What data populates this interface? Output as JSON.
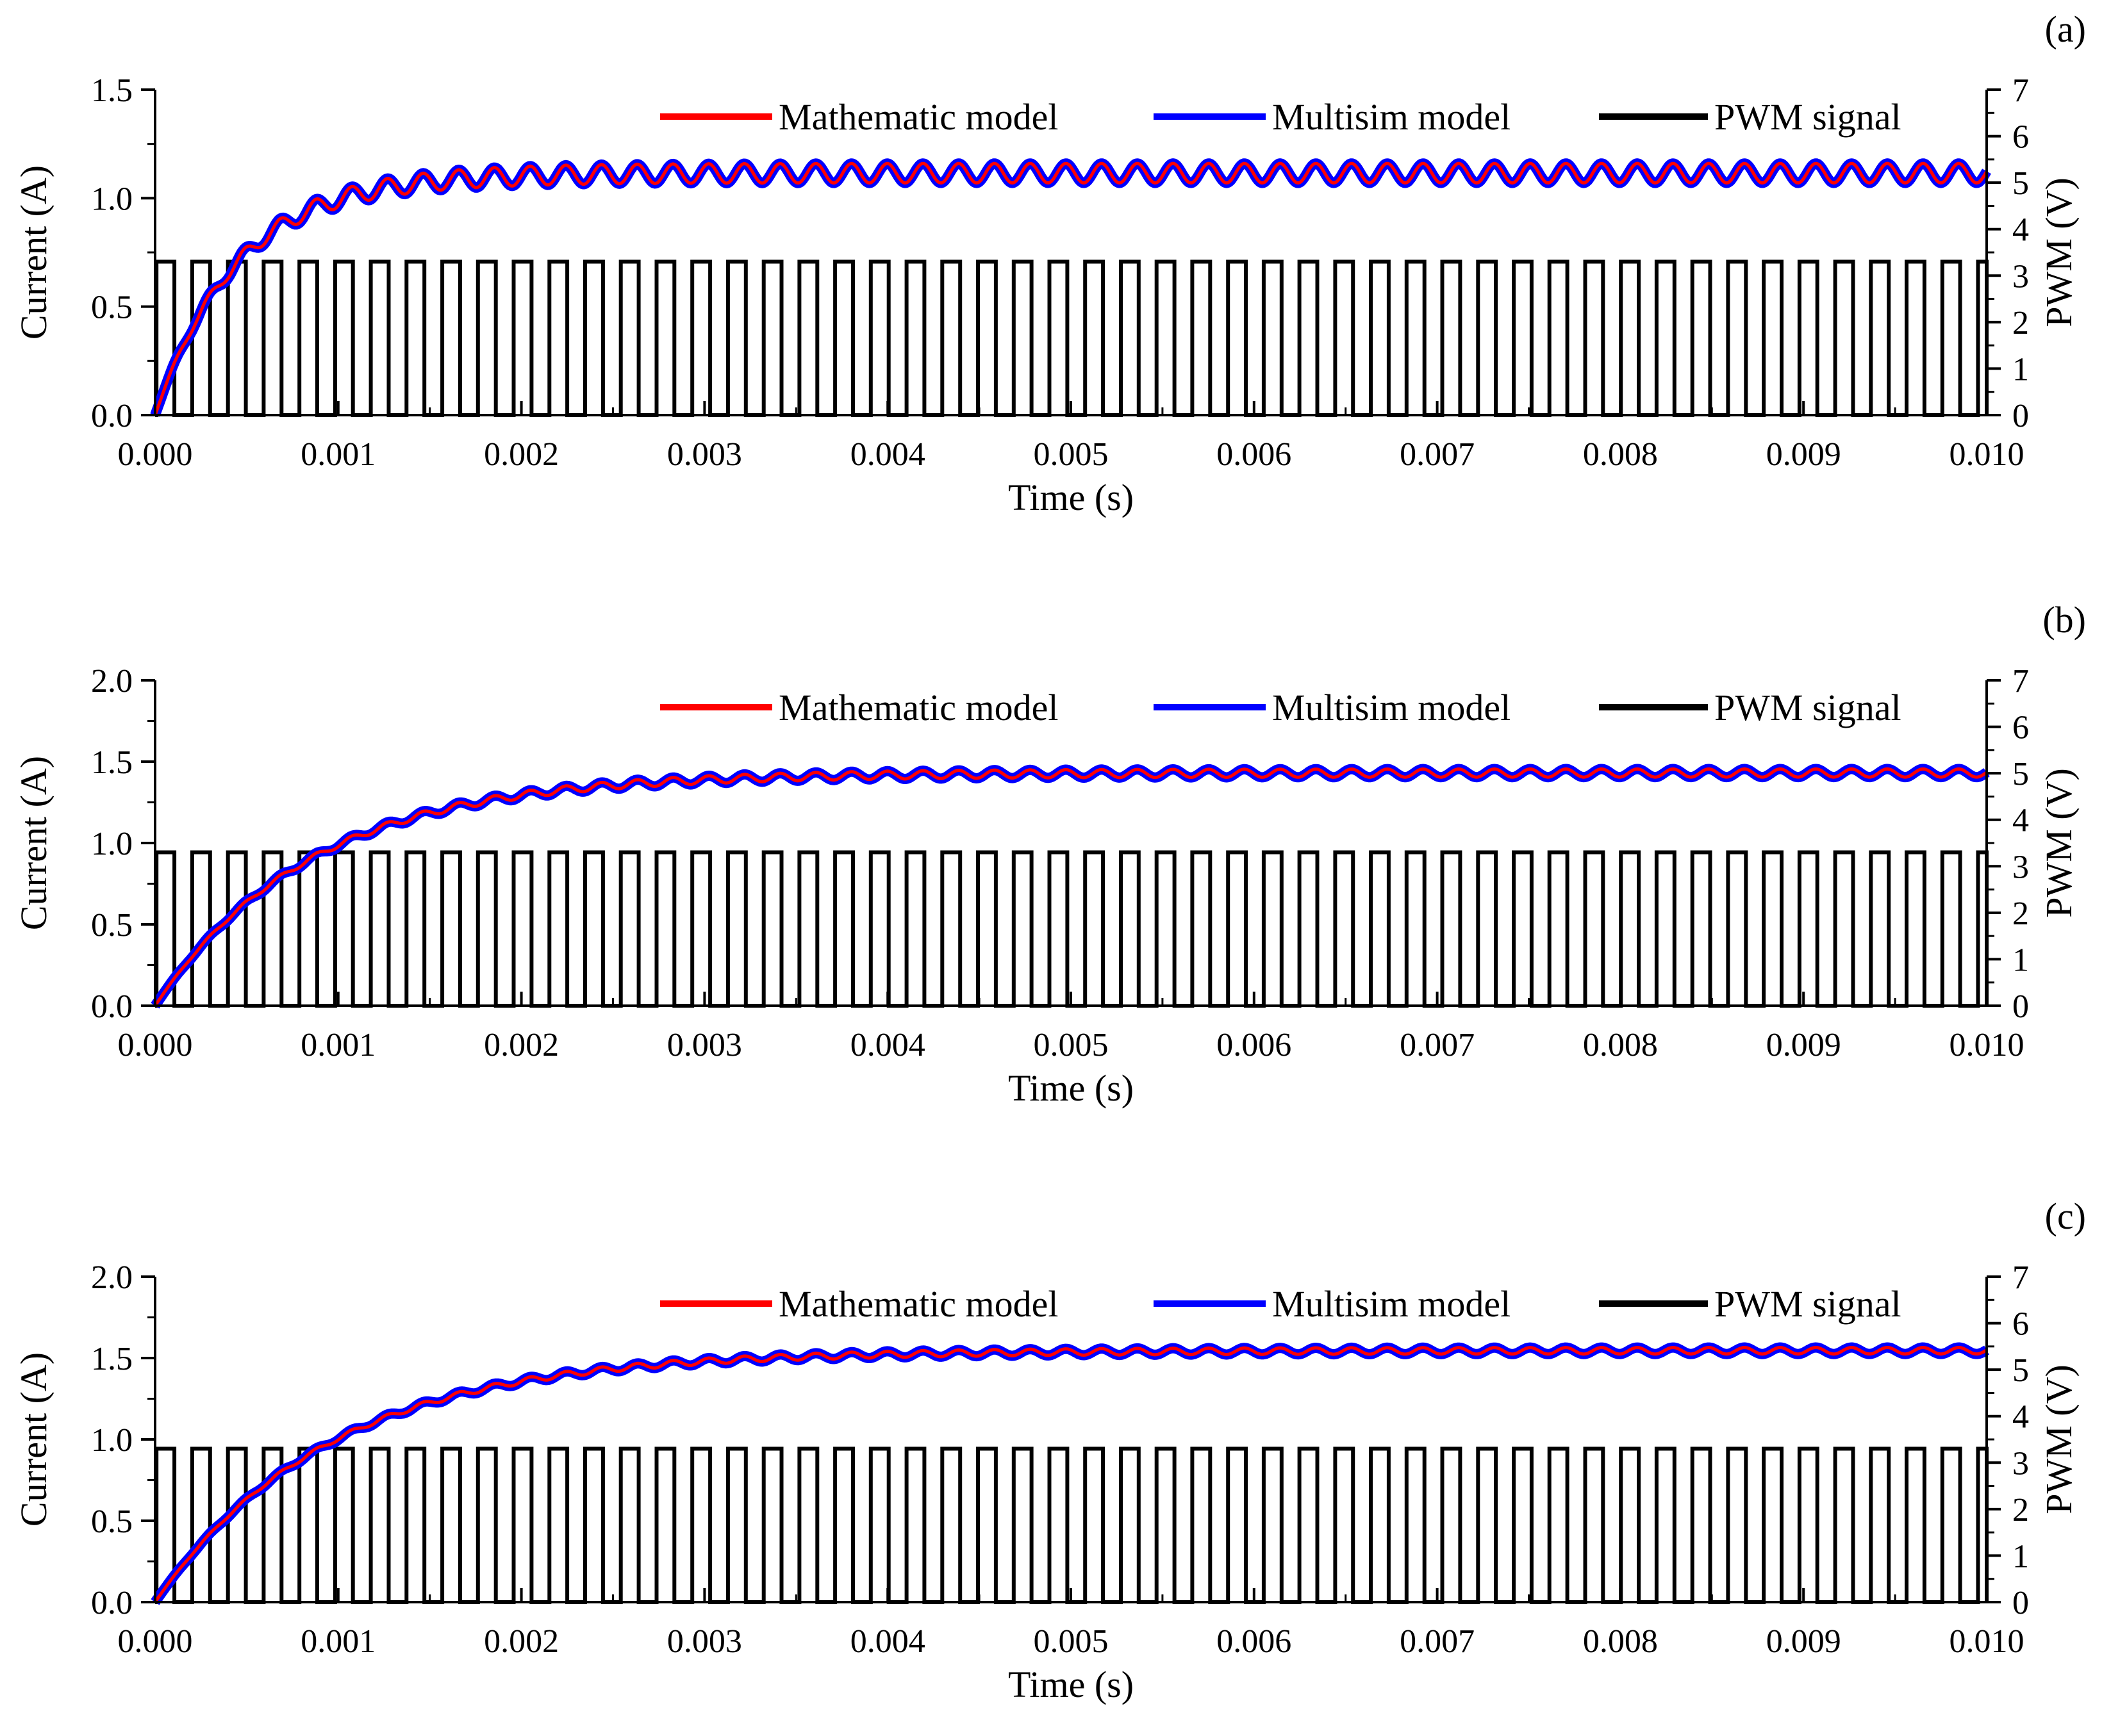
{
  "chart_data": [
    {
      "panel_label": "(a)",
      "type": "line",
      "title": "",
      "xlabel": "Time (s)",
      "ylabel": "Current (A)",
      "y2label": "PWM (V)",
      "xlim": [
        0,
        0.01
      ],
      "ylim": [
        0,
        1.5
      ],
      "y2lim": [
        0,
        7
      ],
      "x_ticks": [
        "0.000",
        "0.001",
        "0.002",
        "0.003",
        "0.004",
        "0.005",
        "0.006",
        "0.007",
        "0.008",
        "0.009",
        "0.010"
      ],
      "y_ticks": [
        "0.0",
        "0.5",
        "1.0",
        "1.5"
      ],
      "y2_ticks": [
        "0",
        "1",
        "2",
        "3",
        "4",
        "5",
        "6",
        "7"
      ],
      "legend_position": "top-right",
      "series": [
        {
          "name": "Mathematic model",
          "color": "#ff0000",
          "axis": "left",
          "model": "first-order rise with ripple",
          "final_value": 1.115,
          "time_constant": 0.00045,
          "ripple_amplitude": 0.045,
          "ripple_period": 0.000195
        },
        {
          "name": "Multisim model",
          "color": "#0000ff",
          "axis": "left",
          "model": "first-order rise with ripple",
          "final_value": 1.115,
          "time_constant": 0.00045,
          "ripple_amplitude": 0.045,
          "ripple_period": 0.000195
        },
        {
          "name": "PWM signal",
          "color": "#000000",
          "axis": "right",
          "model": "square wave",
          "high": 3.3,
          "low": 0,
          "period": 0.000195,
          "duty_cycle": 0.5
        }
      ]
    },
    {
      "panel_label": "(b)",
      "type": "line",
      "title": "",
      "xlabel": "Time (s)",
      "ylabel": "Current (A)",
      "y2label": "PWM (V)",
      "xlim": [
        0,
        0.01
      ],
      "ylim": [
        0,
        2.0
      ],
      "y2lim": [
        0,
        7
      ],
      "x_ticks": [
        "0.000",
        "0.001",
        "0.002",
        "0.003",
        "0.004",
        "0.005",
        "0.006",
        "0.007",
        "0.008",
        "0.009",
        "0.010"
      ],
      "y_ticks": [
        "0.0",
        "0.5",
        "1.0",
        "1.5",
        "2.0"
      ],
      "y2_ticks": [
        "0",
        "1",
        "2",
        "3",
        "4",
        "5",
        "6",
        "7"
      ],
      "legend_position": "top-right",
      "series": [
        {
          "name": "Mathematic model",
          "color": "#ff0000",
          "axis": "left",
          "model": "first-order rise with ripple",
          "final_value": 1.43,
          "time_constant": 0.00085,
          "ripple_amplitude": 0.025,
          "ripple_period": 0.000195
        },
        {
          "name": "Multisim model",
          "color": "#0000ff",
          "axis": "left",
          "model": "first-order rise with ripple",
          "final_value": 1.43,
          "time_constant": 0.00085,
          "ripple_amplitude": 0.025,
          "ripple_period": 0.000195
        },
        {
          "name": "PWM signal",
          "color": "#000000",
          "axis": "right",
          "model": "square wave",
          "high": 3.3,
          "low": 0,
          "period": 0.000195,
          "duty_cycle": 0.5
        }
      ]
    },
    {
      "panel_label": "(c)",
      "type": "line",
      "title": "",
      "xlabel": "Time (s)",
      "ylabel": "Current (A)",
      "y2label": "PWM (V)",
      "xlim": [
        0,
        0.01
      ],
      "ylim": [
        0,
        2.0
      ],
      "y2lim": [
        0,
        7
      ],
      "x_ticks": [
        "0.000",
        "0.001",
        "0.002",
        "0.003",
        "0.004",
        "0.005",
        "0.006",
        "0.007",
        "0.008",
        "0.009",
        "0.010"
      ],
      "y_ticks": [
        "0.0",
        "0.5",
        "1.0",
        "1.5",
        "2.0"
      ],
      "y2_ticks": [
        "0",
        "1",
        "2",
        "3",
        "4",
        "5",
        "6",
        "7"
      ],
      "legend_position": "top-right",
      "series": [
        {
          "name": "Mathematic model",
          "color": "#ff0000",
          "axis": "left",
          "model": "first-order rise with ripple",
          "final_value": 1.545,
          "time_constant": 0.00095,
          "ripple_amplitude": 0.02,
          "ripple_period": 0.000195
        },
        {
          "name": "Multisim model",
          "color": "#0000ff",
          "axis": "left",
          "model": "first-order rise with ripple",
          "final_value": 1.545,
          "time_constant": 0.00095,
          "ripple_amplitude": 0.02,
          "ripple_period": 0.000195
        },
        {
          "name": "PWM signal",
          "color": "#000000",
          "axis": "right",
          "model": "square wave",
          "high": 3.3,
          "low": 0,
          "period": 0.000195,
          "duty_cycle": 0.5
        }
      ]
    }
  ]
}
